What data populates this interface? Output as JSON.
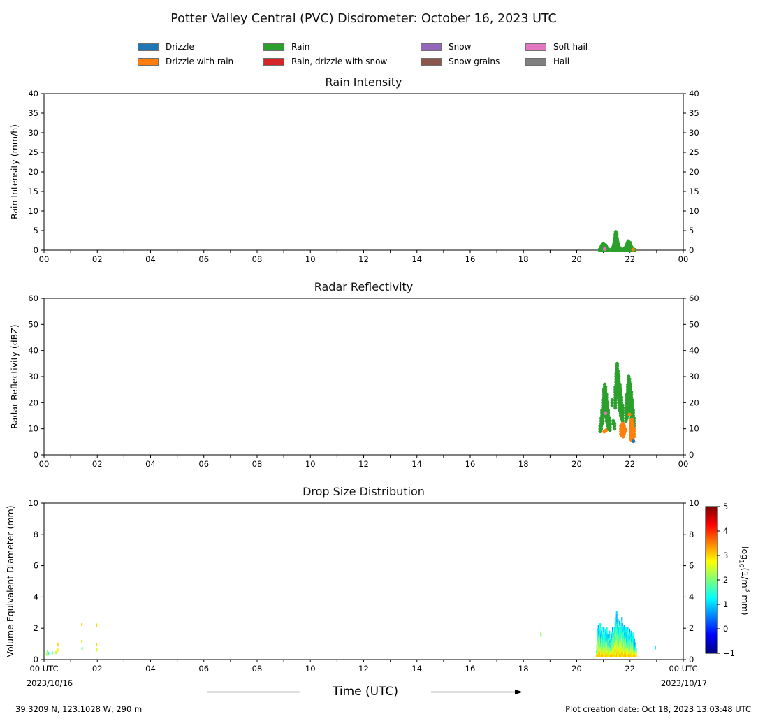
{
  "page": {
    "title": "Potter Valley Central (PVC) Disdrometer: October 16, 2023 UTC",
    "xaxis_label": "Time (UTC)",
    "footer_left": "39.3209 N, 123.1028 W, 290 m",
    "footer_right": "Plot creation date: Oct 18, 2023 13:03:48 UTC"
  },
  "legend": {
    "items": [
      {
        "label": "Drizzle",
        "color": "#1f77b4"
      },
      {
        "label": "Drizzle with rain",
        "color": "#ff7f0e"
      },
      {
        "label": "Rain",
        "color": "#2ca02c"
      },
      {
        "label": "Rain, drizzle with snow",
        "color": "#d62728"
      },
      {
        "label": "Snow",
        "color": "#9467bd"
      },
      {
        "label": "Snow grains",
        "color": "#8c564b"
      },
      {
        "label": "Soft hail",
        "color": "#e377c2"
      },
      {
        "label": "Hail",
        "color": "#7f7f7f"
      }
    ]
  },
  "chart_data": [
    {
      "type": "scatter",
      "title": "Rain Intensity",
      "ylabel": "Rain Intensity (mm/h)",
      "ylim": [
        0,
        40
      ],
      "ytick_step": 5,
      "xlim": [
        0,
        24
      ],
      "xtick_step": 1,
      "xlabel_step": 2,
      "xticklabels": [
        "00",
        "02",
        "04",
        "06",
        "08",
        "10",
        "12",
        "14",
        "16",
        "18",
        "20",
        "22",
        "00"
      ],
      "series": [
        {
          "name": "Rain",
          "color": "#2ca02c",
          "mode": "minutes_fill",
          "start": 20.85,
          "fill_step": 0.45,
          "values": [
            0.1,
            0.2,
            0.3,
            0.5,
            0.8,
            1.1,
            1.3,
            1.5,
            1.4,
            1.6,
            1.2,
            0.9,
            0.7,
            1.0,
            1.3,
            1.1,
            0.8,
            0.6,
            0.4,
            0.3,
            0.2,
            0.15,
            0.1,
            null,
            null,
            null,
            null,
            0.1,
            0.2,
            0.3,
            0.4,
            0.7,
            1.1,
            1.6,
            2.3,
            3.1,
            4.0,
            4.7,
            3.9,
            4.4,
            3.0,
            2.2,
            1.6,
            1.2,
            0.9,
            0.7,
            0.5,
            0.4,
            0.3,
            0.25,
            0.2,
            0.15,
            0.1,
            0.1,
            0.15,
            0.2,
            0.3,
            0.4,
            0.5,
            0.7,
            0.9,
            1.1,
            1.4,
            1.7,
            2.0,
            2.3,
            2.1,
            1.8,
            1.5,
            1.9,
            1.6,
            1.2,
            0.9,
            0.7,
            0.5,
            0.4,
            0.3,
            0.2,
            0.15,
            0.1,
            0.1
          ]
        },
        {
          "name": "Soft hail",
          "color": "#e377c2",
          "mode": "points",
          "points": [
            [
              21.05,
              0.3
            ]
          ]
        },
        {
          "name": "Drizzle with rain",
          "color": "#ff7f0e",
          "mode": "points",
          "points": [
            [
              22.12,
              0.15
            ]
          ]
        }
      ]
    },
    {
      "type": "scatter",
      "title": "Radar Reflectivity",
      "ylabel": "Radar Reflectivity (dBZ)",
      "ylim": [
        0,
        60
      ],
      "ytick_step": 10,
      "xlim": [
        0,
        24
      ],
      "xtick_step": 1,
      "xlabel_step": 2,
      "xticklabels": [
        "00",
        "02",
        "04",
        "06",
        "08",
        "10",
        "12",
        "14",
        "16",
        "18",
        "20",
        "22",
        "00"
      ],
      "series": [
        {
          "name": "Rain",
          "color": "#2ca02c",
          "mode": "runs",
          "run_step": 1.0,
          "runs": [
            [
              20.88,
              9,
              11
            ],
            [
              20.92,
              10,
              14
            ],
            [
              20.95,
              12,
              17
            ],
            [
              20.98,
              13,
              21
            ],
            [
              21.02,
              15,
              25
            ],
            [
              21.05,
              16,
              27
            ],
            [
              21.08,
              15,
              26
            ],
            [
              21.12,
              13,
              23
            ],
            [
              21.15,
              12,
              20
            ],
            [
              21.18,
              11,
              17
            ],
            [
              21.22,
              10,
              14
            ],
            [
              21.25,
              9.5,
              12
            ],
            [
              21.33,
              19,
              21
            ],
            [
              21.37,
              12,
              13
            ],
            [
              21.42,
              10,
              12
            ],
            [
              21.45,
              18,
              26
            ],
            [
              21.48,
              22,
              31
            ],
            [
              21.5,
              25,
              33
            ],
            [
              21.52,
              27,
              35
            ],
            [
              21.55,
              24,
              32
            ],
            [
              21.58,
              20,
              30
            ],
            [
              21.62,
              17,
              27
            ],
            [
              21.65,
              15,
              25
            ],
            [
              21.68,
              14,
              22
            ],
            [
              21.72,
              13,
              19
            ],
            [
              21.85,
              13,
              18
            ],
            [
              21.88,
              14,
              23
            ],
            [
              21.92,
              15,
              27
            ],
            [
              21.95,
              17,
              30
            ],
            [
              21.98,
              18,
              29
            ],
            [
              22.02,
              16,
              27
            ],
            [
              22.05,
              14,
              24
            ],
            [
              22.08,
              13,
              21
            ],
            [
              22.12,
              12,
              17
            ],
            [
              22.15,
              11,
              14
            ]
          ]
        },
        {
          "name": "Rain",
          "color": "#2ca02c",
          "mode": "points",
          "points": [
            [
              21.17,
              9.8
            ]
          ]
        },
        {
          "name": "Drizzle with rain",
          "color": "#ff7f0e",
          "mode": "runs",
          "run_step": 1.0,
          "runs": [
            [
              21.66,
              8,
              11
            ],
            [
              21.7,
              7.5,
              11.5
            ],
            [
              21.74,
              7,
              12
            ],
            [
              21.78,
              8,
              11
            ],
            [
              21.82,
              9,
              10.5
            ],
            [
              22.03,
              6,
              13.5
            ],
            [
              22.07,
              5.5,
              14
            ],
            [
              22.11,
              6,
              12
            ],
            [
              22.15,
              7,
              10
            ]
          ]
        },
        {
          "name": "Drizzle with rain",
          "color": "#ff7f0e",
          "mode": "points",
          "points": [
            [
              21.03,
              8.9
            ],
            [
              21.1,
              9.4
            ],
            [
              21.98,
              15.5
            ]
          ]
        },
        {
          "name": "Soft hail",
          "color": "#e377c2",
          "mode": "points",
          "points": [
            [
              21.08,
              16.0
            ]
          ]
        },
        {
          "name": "Drizzle",
          "color": "#1f77b4",
          "mode": "points",
          "points": [
            [
              22.13,
              5.2
            ]
          ]
        }
      ]
    },
    {
      "type": "heatmap-scatter",
      "title": "Drop Size Distribution",
      "ylabel": "Volume Equivalent Diameter (mm)",
      "ylim": [
        0,
        10
      ],
      "ytick_step": 2,
      "xlim": [
        0,
        24
      ],
      "xtick_step": 1,
      "xlabel_step": 2,
      "xticklabels": [
        "00 UTC",
        "02",
        "04",
        "06",
        "08",
        "10",
        "12",
        "14",
        "16",
        "18",
        "20",
        "22",
        "00 UTC"
      ],
      "dates": {
        "left": "2023/10/16",
        "right": "2023/10/17"
      },
      "colorbar": {
        "range": [
          -1,
          5
        ],
        "ticks": [
          5,
          4,
          3,
          2,
          1,
          0,
          -1
        ],
        "label": {
          "pre": "log",
          "sub": "10",
          "mid": "(1/m",
          "sup": "3",
          "post": " mm)"
        }
      },
      "series": [
        {
          "mode": "dsd_columns",
          "start": 20.75,
          "dmin": 0.25,
          "dstep": 0.125,
          "v_bottom": 3.0,
          "v_top": 1.0,
          "dmax": [
            0.6,
            0.9,
            1.4,
            1.9,
            2.2,
            1.8,
            1.4,
            1.9,
            2.3,
            1.6,
            1.2,
            1.8,
            2.1,
            1.5,
            1.1,
            1.6,
            2.0,
            1.4,
            1.0,
            1.5,
            1.9,
            1.3,
            1.7,
            2.1,
            1.5,
            1.2,
            1.6,
            1.0,
            1.4,
            1.8,
            1.2,
            0.9,
            1.3,
            1.7,
            1.1,
            1.5,
            2.0,
            1.6,
            1.2,
            1.7,
            2.1,
            1.8,
            2.4,
            2.1,
            2.7,
            3.0,
            2.6,
            2.2,
            2.5,
            2.0,
            1.7,
            2.1,
            2.4,
            1.9,
            1.6,
            2.0,
            2.3,
            2.7,
            2.3,
            1.9,
            1.6,
            2.0,
            2.2,
            1.7,
            1.4,
            1.8,
            2.1,
            1.6,
            1.3,
            1.7,
            2.0,
            1.5,
            1.2,
            1.6,
            1.9,
            1.4,
            1.1,
            1.5,
            1.8,
            1.3,
            1.0,
            1.4,
            1.7,
            1.2,
            0.9,
            1.3,
            1.0,
            0.8,
            0.9,
            0.7
          ]
        },
        {
          "mode": "cells",
          "cells": [
            [
              0.1,
              0.35,
              2.2
            ],
            [
              0.13,
              0.5,
              2.0
            ],
            [
              0.17,
              0.4,
              1.6
            ],
            [
              0.31,
              0.42,
              1.9
            ],
            [
              0.45,
              0.45,
              2.4
            ],
            [
              0.52,
              0.6,
              2.8
            ],
            [
              0.53,
              0.95,
              3.0
            ],
            [
              1.42,
              2.25,
              3.0
            ],
            [
              1.42,
              1.15,
              2.5
            ],
            [
              1.43,
              0.7,
              1.9
            ],
            [
              1.97,
              2.2,
              3.0
            ],
            [
              1.97,
              0.95,
              3.0
            ],
            [
              1.98,
              0.62,
              2.6
            ],
            [
              18.65,
              1.7,
              2.3
            ],
            [
              18.66,
              1.55,
              2.0
            ],
            [
              22.95,
              0.75,
              1.2
            ]
          ]
        }
      ]
    }
  ]
}
